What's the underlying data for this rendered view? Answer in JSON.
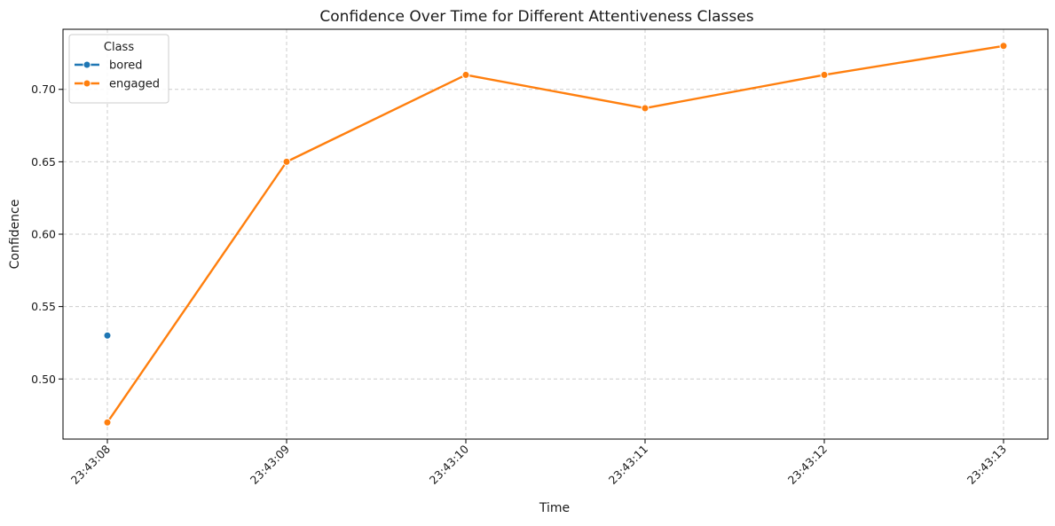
{
  "chart_data": {
    "type": "line",
    "title": "Confidence Over Time for Different Attentiveness Classes",
    "xlabel": "Time",
    "ylabel": "Confidence",
    "x": [
      "23:43:08",
      "23:43:09",
      "23:43:10",
      "23:43:11",
      "23:43:12",
      "23:43:13"
    ],
    "y_ticks": [
      0.5,
      0.55,
      0.6,
      0.65,
      0.7
    ],
    "ylim": [
      0.4585,
      0.7415
    ],
    "grid": true,
    "legend": {
      "title": "Class",
      "placement": "top-left"
    },
    "series": [
      {
        "name": "bored",
        "color": "#1f77b4",
        "points": [
          {
            "x": "23:43:08",
            "y": 0.53
          }
        ]
      },
      {
        "name": "engaged",
        "color": "#ff7f0e",
        "points": [
          {
            "x": "23:43:08",
            "y": 0.47
          },
          {
            "x": "23:43:09",
            "y": 0.65
          },
          {
            "x": "23:43:10",
            "y": 0.71
          },
          {
            "x": "23:43:11",
            "y": 0.687
          },
          {
            "x": "23:43:12",
            "y": 0.71
          },
          {
            "x": "23:43:13",
            "y": 0.73
          }
        ]
      }
    ]
  }
}
